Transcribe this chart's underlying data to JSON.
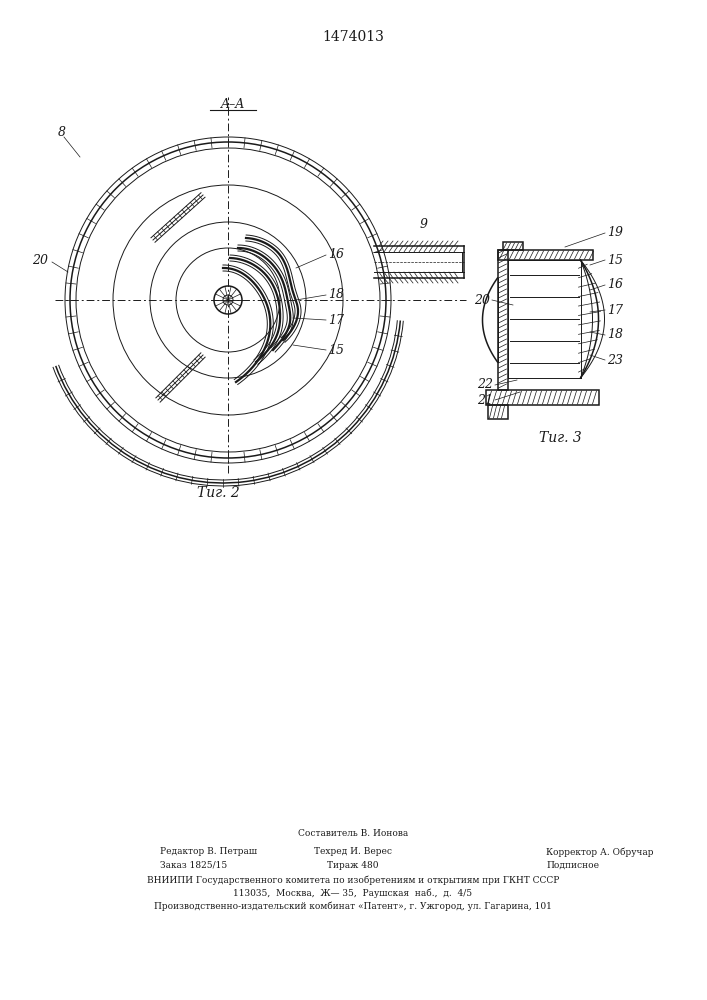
{
  "patent_number": "1474013",
  "background_color": "#ffffff",
  "line_color": "#1a1a1a",
  "fig2_label": "Τиг. 2",
  "fig3_label": "Τиг. 3",
  "section_label": "A–A",
  "footer_line0": "Составитель В. Ионова",
  "footer_line1_left": "Редактор В. Петраш",
  "footer_line1_mid": "Техред И. Верес",
  "footer_line1_right": "Корректор А. Обручар",
  "footer_line2_left": "Заказ 1825/15",
  "footer_line2_mid": "Тираж 480",
  "footer_line2_right": "Подписное",
  "footer_line3": "ВНИИПИ Государственного комитета по изобретениям и открытиям при ГКНТ СССР",
  "footer_line4": "113035,  Москва,  Ж— 35,  Раушская  наб.,  д.  4/5",
  "footer_line5": "Производственно-издательский комбинат «Патент», г. Ужгород, ул. Гагарина, 101"
}
